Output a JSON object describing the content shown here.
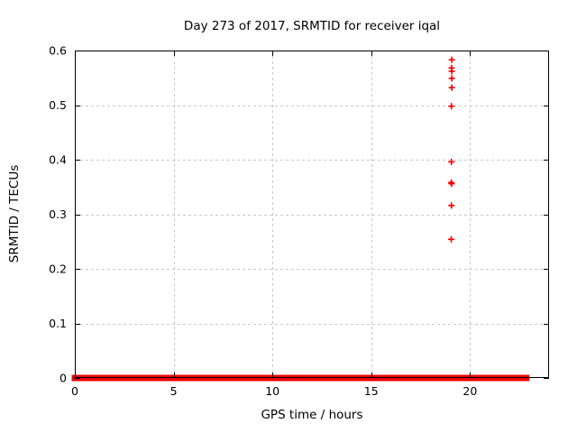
{
  "window": {
    "background_color": "#ffffff",
    "text_color": "#000000"
  },
  "chart_data": {
    "type": "scatter",
    "title": "Day 273 of 2017, SRMTID for receiver iqal",
    "xlabel": "GPS time / hours",
    "ylabel": "SRMTID / TECUs",
    "xlim": [
      0,
      24
    ],
    "ylim": [
      0,
      0.6
    ],
    "xticks": {
      "values": [
        0,
        5,
        10,
        15,
        20
      ],
      "labels": [
        "0",
        "5",
        "10",
        "15",
        "20"
      ]
    },
    "yticks": {
      "values": [
        0,
        0.1,
        0.2,
        0.3,
        0.4,
        0.5,
        0.6
      ],
      "labels": [
        "0",
        "0.1",
        "0.2",
        "0.3",
        "0.4",
        "0.5",
        "0.6"
      ]
    },
    "grid": {
      "show": true,
      "color": "#c8c8c8",
      "style": "dashed"
    },
    "legend": {
      "show": false
    },
    "axis_color": "#000000",
    "marker": {
      "glyph": "+",
      "color": "#ee0000",
      "size": 7,
      "stroke_width": 1.6
    },
    "series": [
      {
        "name": "SRMTID baseline (dense points near 0 TECUs)",
        "render": "band",
        "y": 0.0,
        "x_segments": [
          [
            0.0,
            5.68
          ],
          [
            5.9,
            16.55
          ],
          [
            16.72,
            17.16
          ],
          [
            17.33,
            19.14
          ],
          [
            19.25,
            22.85
          ]
        ]
      },
      {
        "name": "elevated SRMTID points",
        "render": "points",
        "points": [
          [
            19.08,
            0.583
          ],
          [
            19.07,
            0.568
          ],
          [
            19.08,
            0.562
          ],
          [
            19.08,
            0.549
          ],
          [
            19.08,
            0.532
          ],
          [
            19.06,
            0.498
          ],
          [
            19.06,
            0.396
          ],
          [
            19.05,
            0.358
          ],
          [
            19.07,
            0.356
          ],
          [
            19.06,
            0.316
          ],
          [
            19.05,
            0.254
          ]
        ]
      }
    ]
  }
}
